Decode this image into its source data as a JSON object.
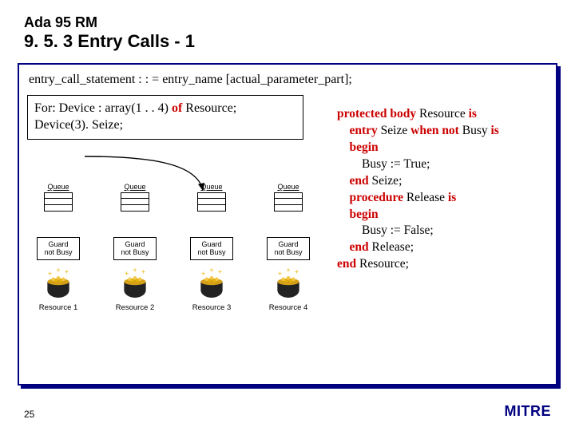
{
  "colors": {
    "navy": "#000080",
    "keyword": "#cc0000",
    "background": "#ffffff",
    "border": "#000000",
    "gold": "#d4a017",
    "pot_dark": "#2a2a2a"
  },
  "header": {
    "line1": "Ada 95 RM",
    "line2": "9. 5. 3 Entry Calls - 1"
  },
  "syntax": "entry_call_statement : : = entry_name [actual_parameter_part];",
  "for_box": {
    "line1_pre": "For: Device  : array(1 . . 4) ",
    "line1_kw": "of",
    "line1_post": " Resource;",
    "line2": "Device(3). Seize;"
  },
  "code": {
    "l1a": "protected body",
    "l1b": " Resource ",
    "l1c": "is",
    "l2a": "    entry",
    "l2b": " Seize ",
    "l2c": "when not",
    "l2d": " Busy ",
    "l2e": "is",
    "l3a": "    begin",
    "l4": "        Busy := True;",
    "l5a": "    end",
    "l5b": " Seize;",
    "l6a": "    procedure",
    "l6b": " Release ",
    "l6c": "is",
    "l7a": "    begin",
    "l8": "        Busy := False;",
    "l9a": "    end",
    "l9b": " Release;",
    "l10a": "end",
    "l10b": " Resource;"
  },
  "resources": [
    {
      "queue": "Queue",
      "guard1": "Guard",
      "guard2": "not Busy",
      "label": "Resource 1"
    },
    {
      "queue": "Queue",
      "guard1": "Guard",
      "guard2": "not Busy",
      "label": "Resource 2"
    },
    {
      "queue": "Queue",
      "guard1": "Guard",
      "guard2": "not Busy",
      "label": "Resource 3"
    },
    {
      "queue": "Queue",
      "guard1": "Guard",
      "guard2": "not Busy",
      "label": "Resource 4"
    }
  ],
  "diagram_style": {
    "queue_slot_count": 3,
    "queue_slot_w": 36,
    "queue_slot_h": 8,
    "guard_box_w": 54,
    "resource_gap": 26,
    "arrow_color": "#000000",
    "arrow_stroke": 1.4
  },
  "footer": {
    "page": "25",
    "logo": "MITRE"
  }
}
